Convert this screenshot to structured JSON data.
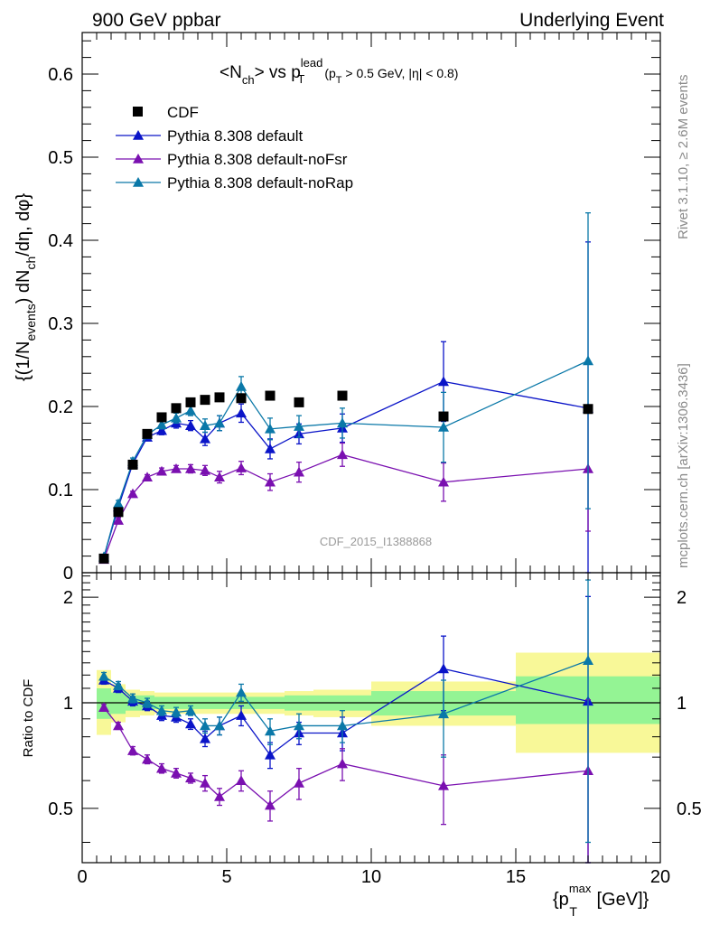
{
  "header": {
    "left": "900 GeV ppbar",
    "right": "Underlying Event"
  },
  "side_labels": {
    "rivet": "Rivet 3.1.10, ≥ 2.6M events",
    "mcplots": "mcplots.cern.ch [arXiv:1306.3436]"
  },
  "watermark": "CDF_2015_I1388868",
  "chart_data": {
    "type": "scatter",
    "title": {
      "lead": "<N",
      "lead_sub": "ch",
      "mid": "> vs p",
      "mid_sup": "lead",
      "mid_sub": "T",
      "cut_a": "(p",
      "cut_a_sub": "T",
      "cut_b": " > 0.5 GeV, |η| < 0.8)"
    },
    "ylabel": {
      "a": "{(1/N",
      "a_sub": "events",
      "b": ") dN",
      "b_sub": "ch",
      "c": "/dη, dφ}"
    },
    "xlabel": {
      "a": "{p",
      "a_sub": "T",
      "a_sup": "max",
      "b": " [GeV]}"
    },
    "ratio_ylabel": "Ratio to CDF",
    "xlim": [
      0,
      20
    ],
    "ylim": [
      0,
      0.65
    ],
    "ratio_ylim": [
      0.35,
      2.35
    ],
    "ratio_scale": "log",
    "x_ticks": [
      "0",
      "5",
      "10",
      "15",
      "20"
    ],
    "y_ticks": [
      "0",
      "0.1",
      "0.2",
      "0.3",
      "0.4",
      "0.5",
      "0.6"
    ],
    "ratio_ticks": [
      "0.5",
      "1",
      "2"
    ],
    "legend_position": "top-left",
    "colors": {
      "cdf": "#000000",
      "default": "#0a14c8",
      "noFsr": "#7a10b0",
      "noRap": "#0a78a8",
      "band_inner": "#94f494",
      "band_outer": "#f8f898"
    },
    "data_x": [
      0.75,
      1.25,
      1.75,
      2.25,
      2.75,
      3.25,
      3.75,
      4.25,
      4.75,
      5.5,
      6.5,
      7.5,
      9.0,
      12.5,
      17.5
    ],
    "cdf": {
      "name": "CDF",
      "y": [
        0.017,
        0.073,
        0.13,
        0.167,
        0.187,
        0.198,
        0.205,
        0.208,
        0.211,
        0.21,
        0.213,
        0.205,
        0.213,
        0.188,
        0.197
      ],
      "bands": [
        {
          "x": [
            0.5,
            1.0
          ],
          "inner": [
            0.9,
            1.1
          ],
          "outer": [
            0.81,
            1.24
          ]
        },
        {
          "x": [
            1.0,
            1.5
          ],
          "inner": [
            0.93,
            1.07
          ],
          "outer": [
            0.88,
            1.13
          ]
        },
        {
          "x": [
            1.5,
            2.0
          ],
          "inner": [
            0.95,
            1.05
          ],
          "outer": [
            0.91,
            1.09
          ]
        },
        {
          "x": [
            2.0,
            2.5
          ],
          "inner": [
            0.95,
            1.05
          ],
          "outer": [
            0.92,
            1.08
          ]
        },
        {
          "x": [
            2.5,
            3.0
          ],
          "inner": [
            0.96,
            1.04
          ],
          "outer": [
            0.93,
            1.07
          ]
        },
        {
          "x": [
            3.0,
            3.5
          ],
          "inner": [
            0.96,
            1.04
          ],
          "outer": [
            0.93,
            1.07
          ]
        },
        {
          "x": [
            3.5,
            4.0
          ],
          "inner": [
            0.96,
            1.04
          ],
          "outer": [
            0.93,
            1.07
          ]
        },
        {
          "x": [
            4.0,
            4.5
          ],
          "inner": [
            0.96,
            1.04
          ],
          "outer": [
            0.93,
            1.07
          ]
        },
        {
          "x": [
            4.5,
            5.0
          ],
          "inner": [
            0.96,
            1.04
          ],
          "outer": [
            0.93,
            1.07
          ]
        },
        {
          "x": [
            5.0,
            6.0
          ],
          "inner": [
            0.96,
            1.04
          ],
          "outer": [
            0.93,
            1.07
          ]
        },
        {
          "x": [
            6.0,
            7.0
          ],
          "inner": [
            0.96,
            1.04
          ],
          "outer": [
            0.93,
            1.07
          ]
        },
        {
          "x": [
            7.0,
            8.0
          ],
          "inner": [
            0.95,
            1.05
          ],
          "outer": [
            0.92,
            1.08
          ]
        },
        {
          "x": [
            8.0,
            10.0
          ],
          "inner": [
            0.95,
            1.05
          ],
          "outer": [
            0.91,
            1.09
          ]
        },
        {
          "x": [
            10.0,
            15.0
          ],
          "inner": [
            0.92,
            1.08
          ],
          "outer": [
            0.86,
            1.15
          ]
        },
        {
          "x": [
            15.0,
            20.0
          ],
          "inner": [
            0.87,
            1.19
          ],
          "outer": [
            0.72,
            1.39
          ]
        }
      ]
    },
    "series": [
      {
        "name": "Pythia 8.308 default",
        "color": "#0a14c8",
        "y": [
          0.019,
          0.079,
          0.131,
          0.163,
          0.171,
          0.18,
          0.177,
          0.161,
          0.18,
          0.192,
          0.149,
          0.167,
          0.174,
          0.23,
          0.198
        ],
        "err": [
          0.002,
          0.004,
          0.004,
          0.004,
          0.005,
          0.006,
          0.006,
          0.008,
          0.009,
          0.011,
          0.012,
          0.012,
          0.017,
          0.048,
          0.2
        ],
        "ratio": [
          1.16,
          1.1,
          1.01,
          0.98,
          0.92,
          0.91,
          0.87,
          0.79,
          0.86,
          0.92,
          0.71,
          0.82,
          0.82,
          1.25,
          1.01
        ],
        "ratio_err": [
          0.03,
          0.03,
          0.03,
          0.03,
          0.03,
          0.03,
          0.03,
          0.04,
          0.05,
          0.06,
          0.06,
          0.06,
          0.09,
          0.3,
          1.0
        ]
      },
      {
        "name": "Pythia 8.308 default-noFsr",
        "color": "#7a10b0",
        "y": [
          0.016,
          0.063,
          0.095,
          0.115,
          0.122,
          0.125,
          0.125,
          0.123,
          0.115,
          0.126,
          0.109,
          0.121,
          0.142,
          0.109,
          0.125
        ],
        "err": [
          0.002,
          0.003,
          0.003,
          0.003,
          0.004,
          0.004,
          0.005,
          0.006,
          0.007,
          0.008,
          0.01,
          0.012,
          0.014,
          0.023,
          0.075
        ],
        "ratio": [
          0.97,
          0.86,
          0.73,
          0.69,
          0.65,
          0.63,
          0.61,
          0.59,
          0.54,
          0.6,
          0.51,
          0.59,
          0.67,
          0.58,
          0.64
        ],
        "ratio_err": [
          0.02,
          0.02,
          0.02,
          0.02,
          0.02,
          0.02,
          0.02,
          0.03,
          0.03,
          0.04,
          0.05,
          0.06,
          0.07,
          0.13,
          0.38
        ]
      },
      {
        "name": "Pythia 8.308 default-noRap",
        "color": "#0a78a8",
        "y": [
          0.019,
          0.083,
          0.134,
          0.166,
          0.178,
          0.186,
          0.195,
          0.177,
          0.18,
          0.224,
          0.173,
          0.176,
          0.18,
          0.175,
          0.255
        ],
        "err": [
          0.002,
          0.004,
          0.004,
          0.004,
          0.005,
          0.006,
          0.006,
          0.008,
          0.009,
          0.012,
          0.013,
          0.013,
          0.018,
          0.042,
          0.178
        ],
        "ratio": [
          1.19,
          1.12,
          1.03,
          1.0,
          0.95,
          0.94,
          0.95,
          0.86,
          0.86,
          1.07,
          0.83,
          0.86,
          0.86,
          0.93,
          1.32
        ],
        "ratio_err": [
          0.03,
          0.03,
          0.03,
          0.03,
          0.03,
          0.03,
          0.03,
          0.04,
          0.05,
          0.06,
          0.07,
          0.07,
          0.09,
          0.23,
          0.92
        ]
      }
    ]
  }
}
